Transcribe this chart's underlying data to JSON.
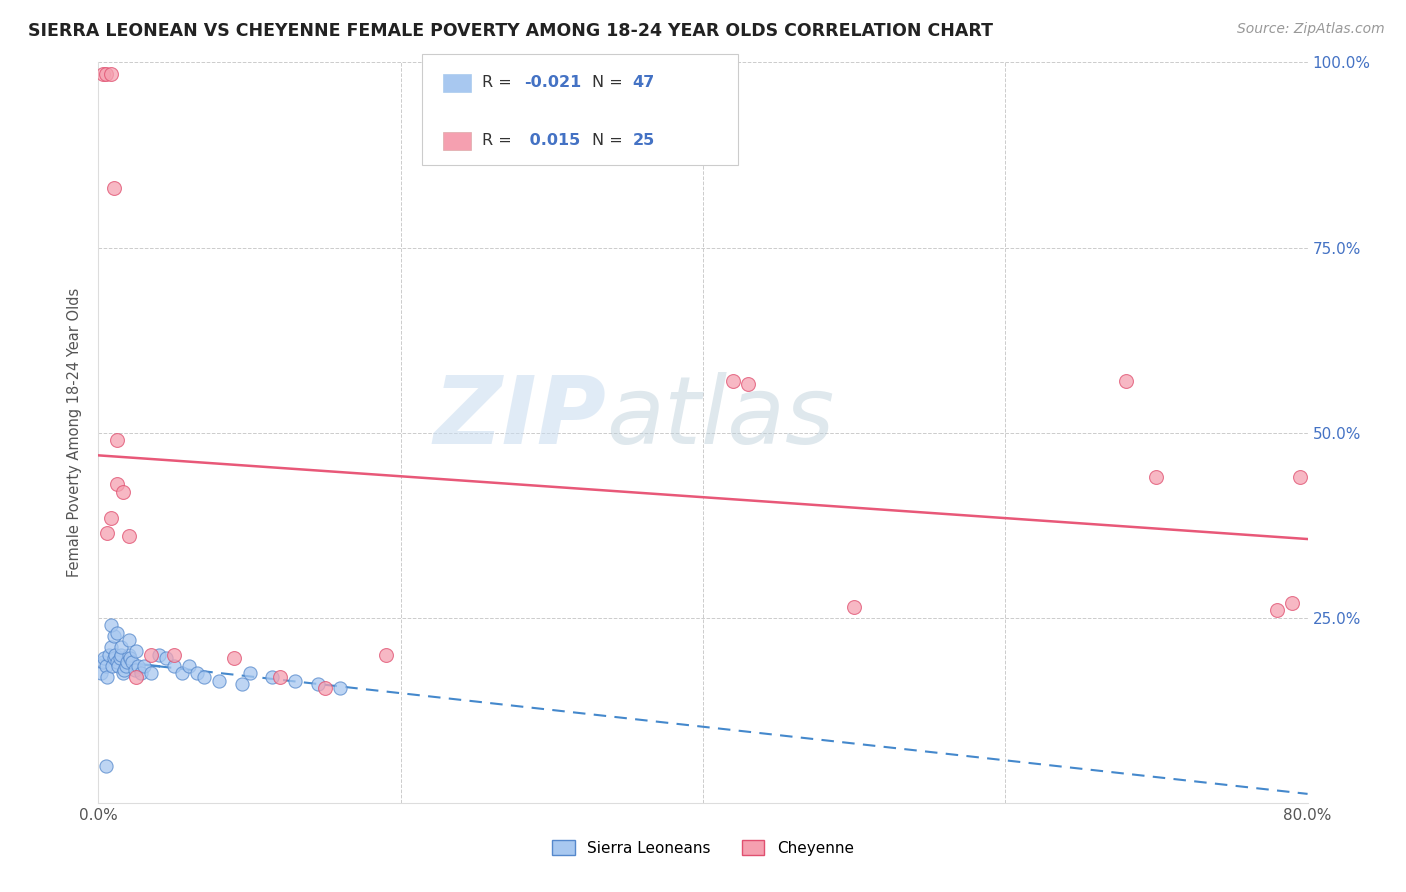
{
  "title": "SIERRA LEONEAN VS CHEYENNE FEMALE POVERTY AMONG 18-24 YEAR OLDS CORRELATION CHART",
  "source": "Source: ZipAtlas.com",
  "ylabel": "Female Poverty Among 18-24 Year Olds",
  "xlim": [
    0.0,
    0.8
  ],
  "ylim": [
    0.0,
    1.0
  ],
  "blue_color": "#A8C8F0",
  "pink_color": "#F5A0B0",
  "blue_edge_color": "#5588CC",
  "pink_edge_color": "#E05070",
  "blue_trend_color": "#4488CC",
  "pink_trend_color": "#E85878",
  "grid_color": "#CCCCCC",
  "right_tick_color": "#4472C4",
  "r_blue": -0.021,
  "r_pink": 0.015,
  "n_blue": 47,
  "n_pink": 25,
  "sierra_x": [
    0.002,
    0.003,
    0.004,
    0.005,
    0.006,
    0.007,
    0.008,
    0.009,
    0.01,
    0.011,
    0.012,
    0.013,
    0.014,
    0.015,
    0.016,
    0.017,
    0.018,
    0.019,
    0.02,
    0.021,
    0.022,
    0.024,
    0.026,
    0.028,
    0.03,
    0.035,
    0.04,
    0.045,
    0.05,
    0.055,
    0.06,
    0.065,
    0.07,
    0.08,
    0.095,
    0.1,
    0.115,
    0.13,
    0.145,
    0.16,
    0.01,
    0.015,
    0.02,
    0.025,
    0.008,
    0.012,
    0.005
  ],
  "sierra_y": [
    0.175,
    0.19,
    0.195,
    0.185,
    0.17,
    0.2,
    0.21,
    0.185,
    0.195,
    0.2,
    0.19,
    0.185,
    0.195,
    0.2,
    0.175,
    0.18,
    0.185,
    0.19,
    0.2,
    0.195,
    0.19,
    0.18,
    0.185,
    0.175,
    0.185,
    0.175,
    0.2,
    0.195,
    0.185,
    0.175,
    0.185,
    0.175,
    0.17,
    0.165,
    0.16,
    0.175,
    0.17,
    0.165,
    0.16,
    0.155,
    0.225,
    0.21,
    0.22,
    0.205,
    0.24,
    0.23,
    0.05
  ],
  "cheyenne_x": [
    0.003,
    0.005,
    0.008,
    0.01,
    0.012,
    0.02,
    0.025,
    0.05,
    0.09,
    0.12,
    0.15,
    0.19,
    0.42,
    0.43,
    0.68,
    0.7,
    0.78,
    0.79,
    0.795,
    0.012,
    0.035,
    0.016,
    0.5,
    0.008,
    0.006
  ],
  "cheyenne_y": [
    0.985,
    0.985,
    0.985,
    0.83,
    0.43,
    0.36,
    0.17,
    0.2,
    0.195,
    0.17,
    0.155,
    0.2,
    0.57,
    0.565,
    0.57,
    0.44,
    0.26,
    0.27,
    0.44,
    0.49,
    0.2,
    0.42,
    0.265,
    0.385,
    0.365
  ]
}
